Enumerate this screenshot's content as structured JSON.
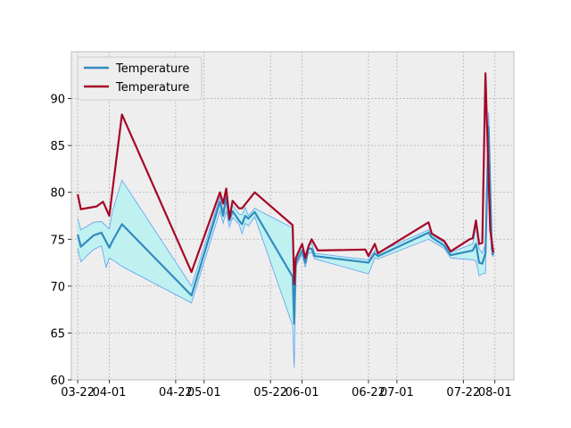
{
  "chart_data": {
    "type": "line",
    "title": "",
    "xlabel": "",
    "ylabel": "",
    "grid": true,
    "legend_position": "top-left",
    "colors": {
      "background": "#eeeeee",
      "grid": "#b2b2b2",
      "mean": "#348abd",
      "band_fill": "#bff1f1",
      "band_edge": "#5e9ff0",
      "max": "#a60628"
    },
    "xlim": [
      -2,
      138
    ],
    "ylim": [
      60,
      95
    ],
    "x_ticks": [
      {
        "x": 0,
        "label": "03-22"
      },
      {
        "x": 10,
        "label": "04-01"
      },
      {
        "x": 31,
        "label": "04-22"
      },
      {
        "x": 40,
        "label": "05-01"
      },
      {
        "x": 61,
        "label": "05-22"
      },
      {
        "x": 71,
        "label": "06-01"
      },
      {
        "x": 92,
        "label": "06-22"
      },
      {
        "x": 101,
        "label": "07-01"
      },
      {
        "x": 122,
        "label": "07-22"
      },
      {
        "x": 132,
        "label": "08-01"
      }
    ],
    "y_ticks": [
      {
        "y": 60,
        "label": "60"
      },
      {
        "y": 65,
        "label": "65"
      },
      {
        "y": 70,
        "label": "70"
      },
      {
        "y": 75,
        "label": "75"
      },
      {
        "y": 80,
        "label": "80"
      },
      {
        "y": 85,
        "label": "85"
      },
      {
        "y": 90,
        "label": "90"
      }
    ],
    "series": [
      {
        "name": "Temperature",
        "kind": "mean",
        "points": [
          [
            0,
            75.5
          ],
          [
            1,
            74.2
          ],
          [
            5,
            75.4
          ],
          [
            7.5,
            75.7
          ],
          [
            10,
            74.1
          ],
          [
            11,
            74.8
          ],
          [
            14,
            76.6
          ],
          [
            36,
            69.0
          ],
          [
            45,
            79.0
          ],
          [
            46,
            77.5
          ],
          [
            47,
            79.5
          ],
          [
            48,
            77.0
          ],
          [
            49,
            78.0
          ],
          [
            51,
            77.0
          ],
          [
            52,
            76.6
          ],
          [
            53,
            77.5
          ],
          [
            54,
            77.2
          ],
          [
            56,
            77.9
          ],
          [
            68,
            71.0
          ],
          [
            68.5,
            66.0
          ],
          [
            69,
            72.5
          ],
          [
            71,
            73.8
          ],
          [
            72,
            72.5
          ],
          [
            73,
            74.0
          ],
          [
            74,
            74.0
          ],
          [
            75,
            73.2
          ],
          [
            92,
            72.5
          ],
          [
            94,
            73.5
          ],
          [
            95,
            73.2
          ],
          [
            111,
            75.7
          ],
          [
            112,
            75.2
          ],
          [
            116,
            74.3
          ],
          [
            118,
            73.3
          ],
          [
            125,
            73.8
          ],
          [
            126,
            74.5
          ],
          [
            127,
            72.5
          ],
          [
            128,
            72.4
          ],
          [
            129,
            73.5
          ],
          [
            130,
            87.0
          ],
          [
            131,
            74.0
          ],
          [
            131.5,
            73.3
          ]
        ]
      },
      {
        "name": "Temperature",
        "kind": "max",
        "points": [
          [
            0,
            79.8
          ],
          [
            1,
            78.2
          ],
          [
            6,
            78.5
          ],
          [
            8,
            79.0
          ],
          [
            10,
            77.5
          ],
          [
            14,
            88.3
          ],
          [
            36,
            71.5
          ],
          [
            45,
            80.0
          ],
          [
            46,
            78.8
          ],
          [
            47,
            80.4
          ],
          [
            48,
            77.2
          ],
          [
            49,
            79.1
          ],
          [
            51,
            78.3
          ],
          [
            52,
            78.3
          ],
          [
            56,
            80.0
          ],
          [
            68,
            76.5
          ],
          [
            68.5,
            70.2
          ],
          [
            69,
            73.0
          ],
          [
            71,
            74.5
          ],
          [
            72,
            73.0
          ],
          [
            73,
            74.2
          ],
          [
            74,
            75.0
          ],
          [
            76,
            73.8
          ],
          [
            91,
            73.9
          ],
          [
            92,
            73.2
          ],
          [
            94,
            74.5
          ],
          [
            95,
            73.5
          ],
          [
            111,
            76.8
          ],
          [
            112,
            75.6
          ],
          [
            116,
            74.8
          ],
          [
            118,
            73.7
          ],
          [
            124,
            75.0
          ],
          [
            125,
            75.1
          ],
          [
            126,
            77.0
          ],
          [
            127,
            74.5
          ],
          [
            128,
            74.6
          ],
          [
            129,
            92.7
          ],
          [
            130.5,
            76.0
          ],
          [
            131.5,
            73.6
          ]
        ]
      }
    ],
    "band": {
      "upper": [
        [
          0,
          77.2
        ],
        [
          1,
          76.0
        ],
        [
          5,
          76.8
        ],
        [
          7.5,
          76.9
        ],
        [
          10,
          76.1
        ],
        [
          11,
          78.0
        ],
        [
          14,
          81.3
        ],
        [
          36,
          70.0
        ],
        [
          45,
          79.5
        ],
        [
          46,
          78.0
        ],
        [
          47,
          80.1
        ],
        [
          48,
          77.5
        ],
        [
          49,
          78.6
        ],
        [
          51,
          77.7
        ],
        [
          52,
          77.6
        ],
        [
          53,
          78.4
        ],
        [
          54,
          77.5
        ],
        [
          56,
          78.3
        ],
        [
          68,
          76.2
        ],
        [
          68.5,
          68.0
        ],
        [
          69,
          73.0
        ],
        [
          71,
          74.3
        ],
        [
          72,
          73.2
        ],
        [
          73,
          74.5
        ],
        [
          74,
          74.6
        ],
        [
          75,
          73.5
        ],
        [
          92,
          72.8
        ],
        [
          94,
          73.8
        ],
        [
          95,
          73.6
        ],
        [
          111,
          76.0
        ],
        [
          112,
          75.5
        ],
        [
          116,
          74.6
        ],
        [
          118,
          73.6
        ],
        [
          125,
          74.5
        ],
        [
          126,
          76.4
        ],
        [
          127,
          74.0
        ],
        [
          128,
          73.5
        ],
        [
          129,
          74.5
        ],
        [
          130,
          88.5
        ],
        [
          131,
          75.5
        ],
        [
          131.5,
          73.6
        ]
      ],
      "lower": [
        [
          0,
          74.0
        ],
        [
          1,
          72.6
        ],
        [
          5,
          73.9
        ],
        [
          7.5,
          74.3
        ],
        [
          9,
          72.0
        ],
        [
          10,
          73.0
        ],
        [
          11,
          72.8
        ],
        [
          14,
          72.1
        ],
        [
          36,
          68.2
        ],
        [
          45,
          78.0
        ],
        [
          46,
          76.7
        ],
        [
          47,
          78.0
        ],
        [
          48,
          76.3
        ],
        [
          49,
          77.3
        ],
        [
          51,
          76.6
        ],
        [
          52,
          75.6
        ],
        [
          53,
          76.7
        ],
        [
          54,
          76.4
        ],
        [
          56,
          77.4
        ],
        [
          68,
          65.8
        ],
        [
          68.5,
          61.3
        ],
        [
          69,
          72.1
        ],
        [
          71,
          73.4
        ],
        [
          72,
          72.0
        ],
        [
          73,
          73.5
        ],
        [
          74,
          73.6
        ],
        [
          75,
          72.9
        ],
        [
          92,
          71.3
        ],
        [
          94,
          73.0
        ],
        [
          95,
          72.9
        ],
        [
          111,
          75.0
        ],
        [
          112,
          74.8
        ],
        [
          116,
          74.0
        ],
        [
          118,
          73.0
        ],
        [
          125,
          72.8
        ],
        [
          126,
          72.7
        ],
        [
          127,
          71.1
        ],
        [
          128,
          71.3
        ],
        [
          129,
          71.4
        ],
        [
          130,
          85.0
        ],
        [
          131,
          73.4
        ],
        [
          131.5,
          73.1
        ]
      ]
    }
  }
}
